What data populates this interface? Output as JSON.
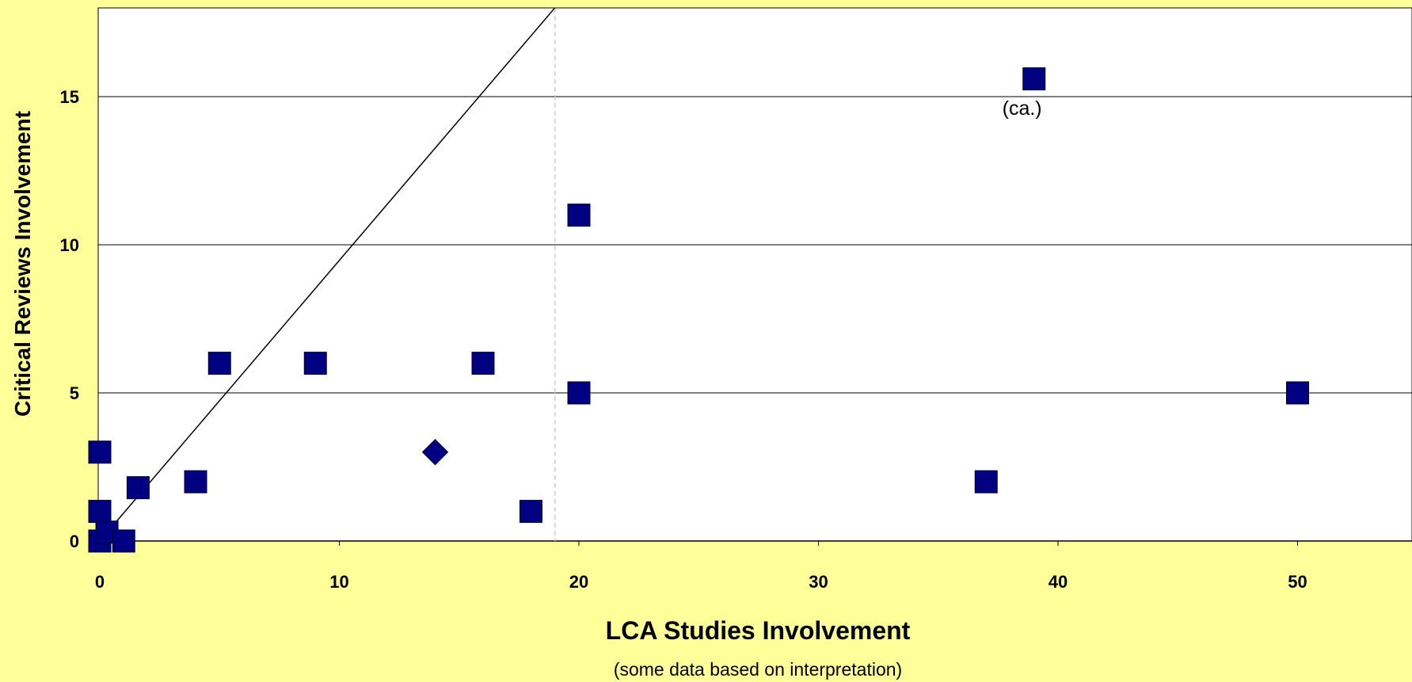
{
  "chart_data": {
    "type": "scatter",
    "title": "",
    "xlabel": "LCA Studies Involvement",
    "xlabel_note": "(some data based on interpretation)",
    "ylabel": "Critical Reviews Involvement",
    "xlim": [
      0,
      55
    ],
    "ylim": [
      0,
      18
    ],
    "xticks": [
      0,
      10,
      20,
      30,
      40,
      50
    ],
    "xtick_labels": [
      "0",
      "10",
      "20",
      "30",
      "40",
      "50"
    ],
    "yticks": [
      0,
      5,
      10,
      15
    ],
    "ytick_labels": [
      "0",
      "5",
      "10",
      "15"
    ],
    "grid": "horizontal",
    "legend": "none",
    "colors": {
      "background": "#FFFF99",
      "plot_area": "#FFFFFF",
      "marker": "#000080",
      "grid": "#000000",
      "reference_line": "#000000",
      "divider": "#CCCCCC"
    },
    "reference_line": {
      "from": [
        0,
        0
      ],
      "to": [
        19,
        18
      ]
    },
    "divider_x": 19,
    "series": [
      {
        "marker": "square",
        "points": [
          {
            "x": 0,
            "y": 3
          },
          {
            "x": 0,
            "y": 1
          },
          {
            "x": 0,
            "y": 0
          },
          {
            "x": 0.3,
            "y": 0.3
          },
          {
            "x": 1,
            "y": 0
          },
          {
            "x": 1.6,
            "y": 1.8
          },
          {
            "x": 4,
            "y": 2
          },
          {
            "x": 5,
            "y": 6
          },
          {
            "x": 9,
            "y": 6
          },
          {
            "x": 16,
            "y": 6
          },
          {
            "x": 18,
            "y": 1
          },
          {
            "x": 20,
            "y": 11
          },
          {
            "x": 20,
            "y": 5
          },
          {
            "x": 37,
            "y": 2
          },
          {
            "x": 39,
            "y": 15.6
          },
          {
            "x": 50,
            "y": 5
          }
        ]
      },
      {
        "marker": "diamond",
        "points": [
          {
            "x": 14,
            "y": 3
          }
        ]
      }
    ],
    "annotations": [
      {
        "text": "(ca.)",
        "x": 38.5,
        "y": 14.6
      }
    ]
  }
}
